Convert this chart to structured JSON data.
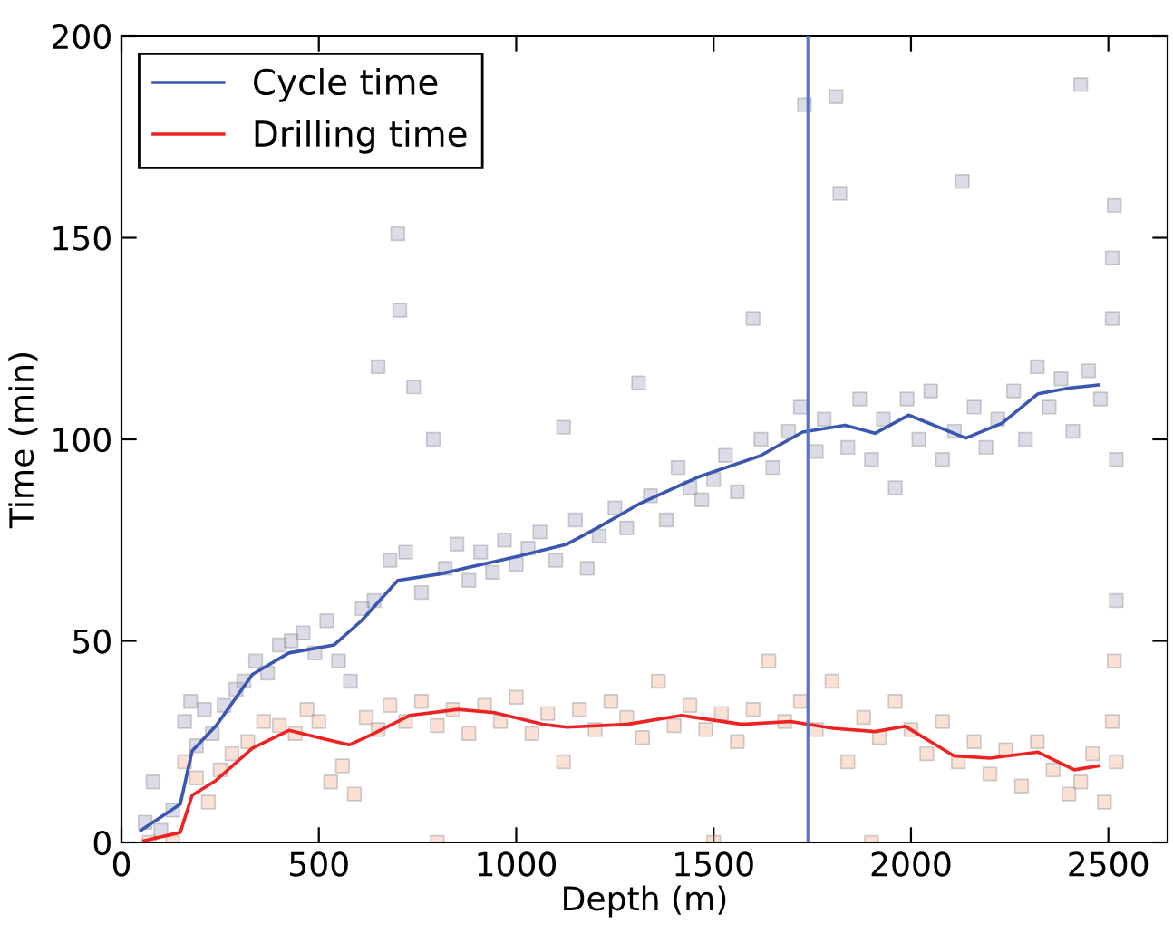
{
  "chart_data": {
    "type": "scatter",
    "xlabel": "Depth (m)",
    "ylabel": "Time (min)",
    "xlim": [
      0,
      2650
    ],
    "ylim": [
      0,
      200
    ],
    "xticks": [
      0,
      500,
      1000,
      1500,
      2000,
      2500
    ],
    "yticks": [
      0,
      50,
      100,
      150,
      200
    ],
    "grid": false,
    "legend": "top left",
    "ref_lines": [
      {
        "axis": "x",
        "value": 1740,
        "color": "#5a74c4",
        "line_style": "solid"
      }
    ],
    "series": [
      {
        "marker": "square",
        "color": "#9a9ac0",
        "x": [
          60,
          80,
          100,
          130,
          160,
          175,
          190,
          210,
          230,
          260,
          290,
          310,
          340,
          370,
          400,
          430,
          460,
          490,
          520,
          550,
          580,
          610,
          640,
          650,
          680,
          700,
          705,
          720,
          740,
          760,
          790,
          820,
          850,
          880,
          910,
          940,
          970,
          1000,
          1030,
          1060,
          1100,
          1120,
          1150,
          1180,
          1210,
          1250,
          1280,
          1310,
          1340,
          1380,
          1410,
          1440,
          1470,
          1500,
          1530,
          1560,
          1600,
          1620,
          1650,
          1690,
          1720,
          1730,
          1760,
          1780,
          1810,
          1820,
          1840,
          1870,
          1900,
          1930,
          1960,
          1990,
          2020,
          2050,
          2080,
          2110,
          2130,
          2160,
          2190,
          2220,
          2260,
          2290,
          2320,
          2350,
          2380,
          2410,
          2430,
          2450,
          2480,
          2510,
          2515,
          2520,
          2520,
          2510
        ],
        "values": [
          5,
          15,
          3,
          8,
          30,
          35,
          24,
          33,
          27,
          34,
          38,
          40,
          45,
          42,
          49,
          50,
          52,
          47,
          55,
          45,
          40,
          58,
          60,
          118,
          70,
          151,
          132,
          72,
          113,
          62,
          100,
          68,
          74,
          65,
          72,
          67,
          75,
          69,
          73,
          77,
          70,
          103,
          80,
          68,
          76,
          83,
          78,
          114,
          86,
          80,
          93,
          88,
          85,
          90,
          96,
          87,
          130,
          100,
          93,
          102,
          108,
          183,
          97,
          105,
          185,
          161,
          98,
          110,
          95,
          105,
          88,
          110,
          100,
          112,
          95,
          102,
          164,
          108,
          98,
          105,
          112,
          100,
          118,
          108,
          115,
          102,
          188,
          117,
          110,
          130,
          158,
          95,
          60,
          145
        ]
      },
      {
        "marker": "square",
        "color": "#f0a888",
        "x": [
          70,
          130,
          160,
          190,
          220,
          250,
          280,
          320,
          360,
          400,
          440,
          470,
          500,
          530,
          560,
          590,
          620,
          650,
          680,
          720,
          760,
          800,
          840,
          880,
          920,
          960,
          1000,
          1040,
          1080,
          1120,
          1160,
          1200,
          1240,
          1280,
          1320,
          1360,
          1400,
          1440,
          1480,
          1520,
          1560,
          1600,
          1640,
          1680,
          1720,
          1760,
          1800,
          1840,
          1880,
          1920,
          1960,
          2000,
          2040,
          2080,
          2120,
          2160,
          2200,
          2240,
          2280,
          2320,
          2360,
          2400,
          2430,
          2460,
          2490,
          2510,
          2515,
          2520,
          800,
          1500,
          1900
        ],
        "values": [
          0,
          0,
          20,
          16,
          10,
          18,
          22,
          25,
          30,
          29,
          27,
          33,
          30,
          15,
          19,
          12,
          31,
          28,
          34,
          30,
          35,
          29,
          33,
          27,
          34,
          30,
          36,
          27,
          32,
          20,
          33,
          28,
          35,
          31,
          26,
          40,
          29,
          34,
          28,
          32,
          25,
          33,
          45,
          30,
          35,
          28,
          40,
          20,
          31,
          26,
          35,
          28,
          22,
          30,
          20,
          25,
          17,
          23,
          14,
          25,
          18,
          12,
          15,
          22,
          10,
          30,
          45,
          20,
          0,
          0,
          0
        ]
      },
      {
        "type": "line",
        "name": "Cycle time",
        "marker": "none",
        "color": "#3a56b0",
        "x": [
          49,
          149,
          179,
          240,
          332,
          424,
          539,
          608,
          700,
          807,
          914,
          1006,
          1129,
          1205,
          1312,
          1465,
          1618,
          1725,
          1833,
          1909,
          1994,
          2139,
          2231,
          2322,
          2399,
          2476
        ],
        "values": [
          3,
          9.5,
          22.7,
          29,
          41.7,
          47,
          49,
          55,
          65,
          66.6,
          69,
          71,
          74,
          78,
          84,
          90.8,
          95.9,
          101.8,
          103.5,
          101.5,
          106,
          100.3,
          104,
          111.3,
          112.7,
          113.5
        ]
      },
      {
        "type": "line",
        "name": "Drilling time",
        "marker": "none",
        "color": "#ee2222",
        "x": [
          57,
          149,
          179,
          240,
          332,
          424,
          516,
          577,
          639,
          730,
          853,
          945,
          1067,
          1129,
          1281,
          1419,
          1572,
          1695,
          1802,
          1909,
          1986,
          2108,
          2200,
          2322,
          2414,
          2476
        ],
        "values": [
          0.4,
          2.5,
          11.7,
          15.4,
          23.4,
          27.8,
          25.6,
          24.2,
          27,
          31.5,
          33,
          32.2,
          29.3,
          28.6,
          29.3,
          31.5,
          29.3,
          30,
          28.3,
          27.5,
          28.8,
          21.5,
          20.9,
          22.4,
          18,
          19
        ]
      }
    ]
  }
}
